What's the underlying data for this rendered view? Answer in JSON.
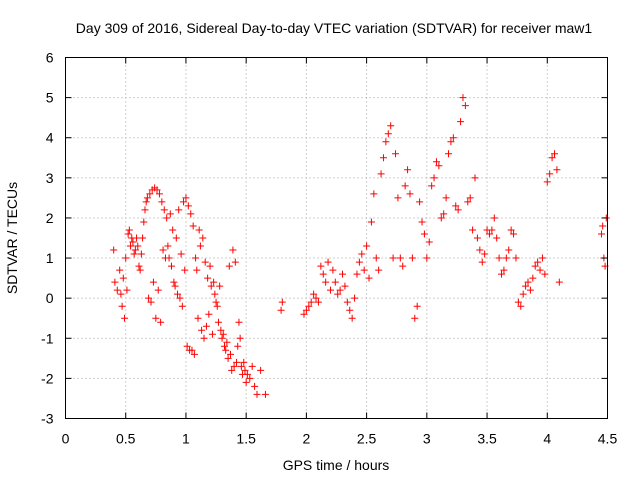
{
  "chart_data": {
    "type": "scatter",
    "title": "Day 309 of 2016, Sidereal Day-to-day VTEC variation (SDTVAR) for receiver maw1",
    "xlabel": "GPS time / hours",
    "ylabel": "SDTVAR / TECUs",
    "xlim": [
      0,
      4.5
    ],
    "ylim": [
      -3,
      6
    ],
    "xticks": [
      0,
      0.5,
      1,
      1.5,
      2,
      2.5,
      3,
      3.5,
      4,
      4.5
    ],
    "xtick_labels": [
      "0",
      "0.5",
      "1",
      "1.5",
      "2",
      "2.5",
      "3",
      "3.5",
      "4",
      "4.5"
    ],
    "yticks": [
      -3,
      -2,
      -1,
      0,
      1,
      2,
      3,
      4,
      5,
      6
    ],
    "ytick_labels": [
      "-3",
      "-2",
      "-1",
      "0",
      "1",
      "2",
      "3",
      "4",
      "5",
      "6"
    ],
    "grid": true,
    "marker": "+",
    "color": "#ff0000",
    "series": [
      {
        "name": "SDTVAR",
        "points": [
          [
            0.4,
            1.2
          ],
          [
            0.41,
            0.4
          ],
          [
            0.43,
            0.2
          ],
          [
            0.45,
            0.7
          ],
          [
            0.46,
            0.1
          ],
          [
            0.47,
            -0.2
          ],
          [
            0.48,
            0.5
          ],
          [
            0.49,
            -0.5
          ],
          [
            0.5,
            1.0
          ],
          [
            0.51,
            0.2
          ],
          [
            0.52,
            1.6
          ],
          [
            0.53,
            1.7
          ],
          [
            0.54,
            1.3
          ],
          [
            0.55,
            1.5
          ],
          [
            0.56,
            1.4
          ],
          [
            0.57,
            1.1
          ],
          [
            0.58,
            1.2
          ],
          [
            0.59,
            1.5
          ],
          [
            0.6,
            1.3
          ],
          [
            0.61,
            0.8
          ],
          [
            0.62,
            0.7
          ],
          [
            0.63,
            1.1
          ],
          [
            0.64,
            1.5
          ],
          [
            0.65,
            1.9
          ],
          [
            0.66,
            2.2
          ],
          [
            0.67,
            2.4
          ],
          [
            0.68,
            2.5
          ],
          [
            0.69,
            0.0
          ],
          [
            0.7,
            2.6
          ],
          [
            0.71,
            -0.1
          ],
          [
            0.72,
            2.7
          ],
          [
            0.73,
            0.4
          ],
          [
            0.74,
            2.75
          ],
          [
            0.75,
            -0.5
          ],
          [
            0.76,
            2.7
          ],
          [
            0.77,
            0.2
          ],
          [
            0.78,
            2.6
          ],
          [
            0.79,
            -0.6
          ],
          [
            0.8,
            2.4
          ],
          [
            0.81,
            1.2
          ],
          [
            0.82,
            2.2
          ],
          [
            0.83,
            1.0
          ],
          [
            0.84,
            2.0
          ],
          [
            0.85,
            1.3
          ],
          [
            0.86,
            1.0
          ],
          [
            0.87,
            2.1
          ],
          [
            0.88,
            0.8
          ],
          [
            0.89,
            1.7
          ],
          [
            0.9,
            0.4
          ],
          [
            0.91,
            0.3
          ],
          [
            0.92,
            1.5
          ],
          [
            0.93,
            0.1
          ],
          [
            0.94,
            2.2
          ],
          [
            0.95,
            0.0
          ],
          [
            0.96,
            1.1
          ],
          [
            0.97,
            -0.2
          ],
          [
            0.98,
            2.4
          ],
          [
            0.99,
            0.7
          ],
          [
            1.0,
            2.5
          ],
          [
            1.01,
            -1.2
          ],
          [
            1.02,
            2.3
          ],
          [
            1.03,
            -1.3
          ],
          [
            1.04,
            2.1
          ],
          [
            1.05,
            -1.3
          ],
          [
            1.06,
            1.8
          ],
          [
            1.07,
            -1.4
          ],
          [
            1.08,
            1.0
          ],
          [
            1.09,
            0.7
          ],
          [
            1.1,
            -0.5
          ],
          [
            1.11,
            1.7
          ],
          [
            1.12,
            1.3
          ],
          [
            1.13,
            -0.8
          ],
          [
            1.14,
            1.5
          ],
          [
            1.15,
            -1.0
          ],
          [
            1.16,
            0.9
          ],
          [
            1.17,
            -0.7
          ],
          [
            1.18,
            0.5
          ],
          [
            1.19,
            -0.4
          ],
          [
            1.2,
            0.8
          ],
          [
            1.21,
            0.3
          ],
          [
            1.22,
            -0.9
          ],
          [
            1.23,
            0.4
          ],
          [
            1.24,
            0.1
          ],
          [
            1.25,
            -0.1
          ],
          [
            1.26,
            -0.2
          ],
          [
            1.27,
            -0.6
          ],
          [
            1.28,
            0.3
          ],
          [
            1.29,
            -0.8
          ],
          [
            1.3,
            -1.0
          ],
          [
            1.31,
            -0.9
          ],
          [
            1.32,
            -1.2
          ],
          [
            1.33,
            -1.3
          ],
          [
            1.34,
            -1.1
          ],
          [
            1.35,
            -1.5
          ],
          [
            1.36,
            0.8
          ],
          [
            1.37,
            -1.4
          ],
          [
            1.38,
            -1.8
          ],
          [
            1.39,
            1.2
          ],
          [
            1.4,
            -1.7
          ],
          [
            1.41,
            0.9
          ],
          [
            1.42,
            -1.6
          ],
          [
            1.43,
            -1.2
          ],
          [
            1.44,
            -0.6
          ],
          [
            1.45,
            -1.0
          ],
          [
            1.46,
            -1.7
          ],
          [
            1.47,
            -1.9
          ],
          [
            1.48,
            -1.6
          ],
          [
            1.49,
            -1.8
          ],
          [
            1.5,
            -2.1
          ],
          [
            1.51,
            -1.9
          ],
          [
            1.53,
            -2.0
          ],
          [
            1.55,
            -1.7
          ],
          [
            1.57,
            -2.2
          ],
          [
            1.59,
            -2.4
          ],
          [
            1.62,
            -1.8
          ],
          [
            1.66,
            -2.4
          ],
          [
            1.79,
            -0.3
          ],
          [
            1.8,
            -0.1
          ],
          [
            1.98,
            -0.4
          ],
          [
            2.0,
            -0.3
          ],
          [
            2.02,
            -0.2
          ],
          [
            2.04,
            -0.1
          ],
          [
            2.06,
            0.1
          ],
          [
            2.08,
            0.0
          ],
          [
            2.1,
            -0.1
          ],
          [
            2.12,
            0.8
          ],
          [
            2.14,
            0.6
          ],
          [
            2.16,
            0.4
          ],
          [
            2.18,
            0.9
          ],
          [
            2.2,
            0.2
          ],
          [
            2.22,
            0.7
          ],
          [
            2.24,
            0.4
          ],
          [
            2.26,
            0.1
          ],
          [
            2.28,
            0.2
          ],
          [
            2.3,
            0.6
          ],
          [
            2.32,
            0.3
          ],
          [
            2.34,
            -0.1
          ],
          [
            2.36,
            -0.3
          ],
          [
            2.38,
            -0.5
          ],
          [
            2.4,
            0.0
          ],
          [
            2.42,
            0.6
          ],
          [
            2.44,
            0.9
          ],
          [
            2.46,
            1.1
          ],
          [
            2.48,
            0.7
          ],
          [
            2.5,
            1.3
          ],
          [
            2.52,
            0.5
          ],
          [
            2.54,
            1.9
          ],
          [
            2.56,
            2.6
          ],
          [
            2.58,
            1.0
          ],
          [
            2.6,
            0.7
          ],
          [
            2.62,
            3.1
          ],
          [
            2.64,
            3.5
          ],
          [
            2.66,
            3.9
          ],
          [
            2.68,
            4.1
          ],
          [
            2.7,
            4.3
          ],
          [
            2.72,
            1.0
          ],
          [
            2.74,
            3.6
          ],
          [
            2.76,
            2.5
          ],
          [
            2.78,
            1.0
          ],
          [
            2.8,
            0.8
          ],
          [
            2.82,
            2.8
          ],
          [
            2.84,
            3.2
          ],
          [
            2.86,
            2.6
          ],
          [
            2.88,
            1.0
          ],
          [
            2.9,
            -0.5
          ],
          [
            2.92,
            -0.2
          ],
          [
            2.94,
            2.4
          ],
          [
            2.96,
            1.9
          ],
          [
            2.98,
            1.6
          ],
          [
            3.0,
            1.0
          ],
          [
            3.02,
            1.4
          ],
          [
            3.04,
            2.8
          ],
          [
            3.06,
            3.0
          ],
          [
            3.08,
            3.4
          ],
          [
            3.1,
            3.3
          ],
          [
            3.12,
            2.0
          ],
          [
            3.14,
            2.1
          ],
          [
            3.16,
            2.5
          ],
          [
            3.18,
            3.6
          ],
          [
            3.2,
            3.9
          ],
          [
            3.22,
            4.0
          ],
          [
            3.24,
            2.3
          ],
          [
            3.26,
            2.2
          ],
          [
            3.28,
            4.4
          ],
          [
            3.3,
            5.0
          ],
          [
            3.32,
            4.8
          ],
          [
            3.34,
            2.4
          ],
          [
            3.36,
            2.5
          ],
          [
            3.38,
            1.7
          ],
          [
            3.4,
            3.0
          ],
          [
            3.42,
            1.5
          ],
          [
            3.44,
            1.2
          ],
          [
            3.46,
            0.9
          ],
          [
            3.48,
            1.1
          ],
          [
            3.5,
            1.7
          ],
          [
            3.52,
            1.6
          ],
          [
            3.54,
            1.7
          ],
          [
            3.56,
            2.0
          ],
          [
            3.58,
            1.5
          ],
          [
            3.6,
            1.0
          ],
          [
            3.62,
            0.6
          ],
          [
            3.64,
            0.7
          ],
          [
            3.66,
            1.0
          ],
          [
            3.68,
            1.2
          ],
          [
            3.7,
            1.7
          ],
          [
            3.72,
            1.6
          ],
          [
            3.74,
            1.0
          ],
          [
            3.76,
            -0.1
          ],
          [
            3.78,
            -0.2
          ],
          [
            3.8,
            0.1
          ],
          [
            3.82,
            0.3
          ],
          [
            3.84,
            0.4
          ],
          [
            3.86,
            0.2
          ],
          [
            3.88,
            0.5
          ],
          [
            3.9,
            0.8
          ],
          [
            3.92,
            0.9
          ],
          [
            3.94,
            0.7
          ],
          [
            3.96,
            1.0
          ],
          [
            3.98,
            0.6
          ],
          [
            4.0,
            2.9
          ],
          [
            4.02,
            3.1
          ],
          [
            4.04,
            3.5
          ],
          [
            4.06,
            3.6
          ],
          [
            4.08,
            3.2
          ],
          [
            4.1,
            0.4
          ],
          [
            4.45,
            1.6
          ],
          [
            4.46,
            1.8
          ],
          [
            4.47,
            1.0
          ],
          [
            4.48,
            0.8
          ],
          [
            4.49,
            2.0
          ]
        ]
      }
    ]
  }
}
